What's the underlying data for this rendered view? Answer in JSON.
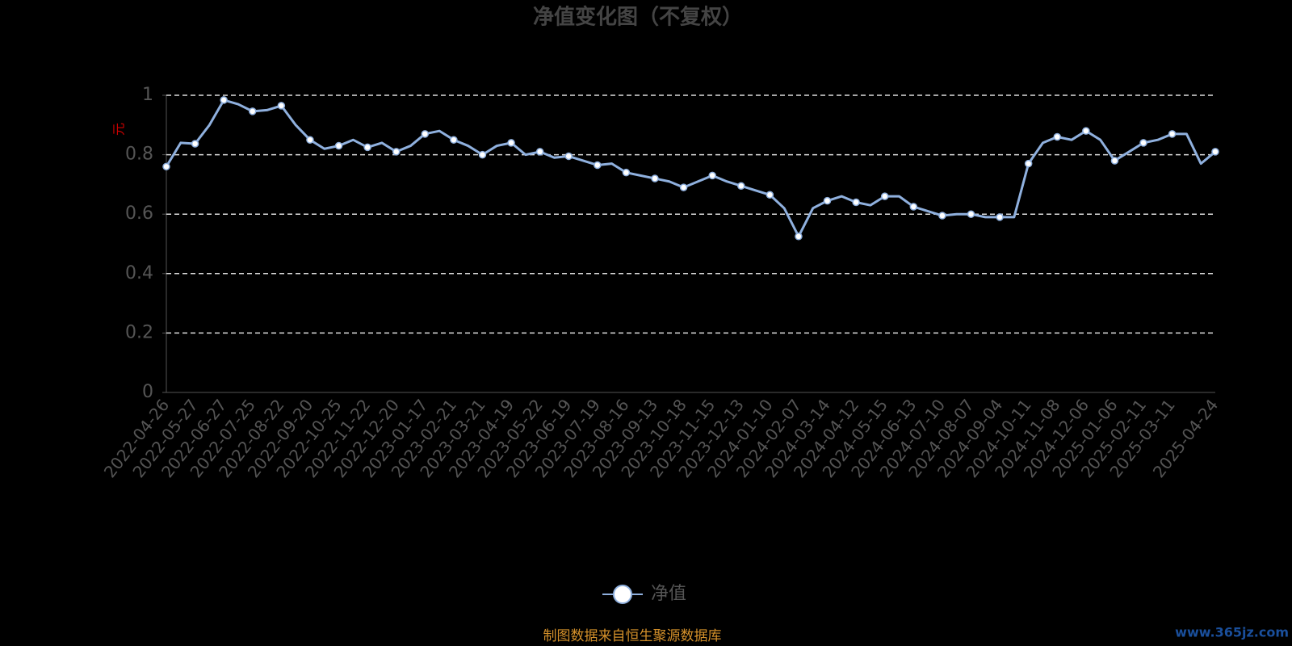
{
  "chart_data": {
    "type": "line",
    "title": "净值变化图（不复权）",
    "y_label": "元",
    "categories": [
      "2022-04-26",
      null,
      "2022-05-27",
      null,
      "2022-06-27",
      null,
      "2022-07-25",
      null,
      "2022-08-22",
      null,
      "2022-09-20",
      null,
      "2022-10-25",
      null,
      "2022-11-22",
      null,
      "2022-12-20",
      null,
      "2023-01-17",
      null,
      "2023-02-21",
      null,
      "2023-03-21",
      null,
      "2023-04-19",
      null,
      "2023-05-22",
      null,
      "2023-06-19",
      null,
      "2023-07-19",
      null,
      "2023-08-16",
      null,
      "2023-09-13",
      null,
      "2023-10-18",
      null,
      "2023-11-15",
      null,
      "2023-12-13",
      null,
      "2024-01-10",
      null,
      "2024-02-07",
      null,
      "2024-03-14",
      null,
      "2024-04-12",
      null,
      "2024-05-15",
      null,
      "2024-06-13",
      null,
      "2024-07-10",
      null,
      "2024-08-07",
      null,
      "2024-09-04",
      null,
      "2024-10-11",
      null,
      "2024-11-08",
      null,
      "2024-12-06",
      null,
      "2025-01-06",
      null,
      "2025-02-11",
      null,
      "2025-03-11",
      null,
      null,
      "2025-04-24"
    ],
    "series": [
      {
        "name": "净值",
        "color": "#8fb0de",
        "values": [
          0.76,
          0.84,
          0.837,
          0.9,
          0.984,
          0.97,
          0.946,
          0.95,
          0.965,
          0.9,
          0.85,
          0.82,
          0.83,
          0.85,
          0.825,
          0.84,
          0.81,
          0.83,
          0.87,
          0.88,
          0.85,
          0.83,
          0.8,
          0.83,
          0.84,
          0.8,
          0.81,
          0.79,
          0.795,
          0.78,
          0.765,
          0.77,
          0.74,
          0.73,
          0.72,
          0.71,
          0.69,
          0.71,
          0.73,
          0.71,
          0.695,
          0.68,
          0.665,
          0.62,
          0.525,
          0.62,
          0.645,
          0.66,
          0.64,
          0.63,
          0.66,
          0.66,
          0.625,
          0.61,
          0.595,
          0.6,
          0.6,
          0.59,
          0.59,
          0.59,
          0.77,
          0.84,
          0.86,
          0.85,
          0.88,
          0.85,
          0.78,
          0.81,
          0.84,
          0.85,
          0.87,
          0.87,
          0.77,
          0.81
        ]
      }
    ],
    "ylim": [
      0,
      1
    ],
    "yticks": [
      0,
      0.2,
      0.4,
      0.6,
      0.8,
      1
    ],
    "grid": true,
    "source": "制图数据来自恒生聚源数据库",
    "watermark": "www.365jz.com"
  }
}
